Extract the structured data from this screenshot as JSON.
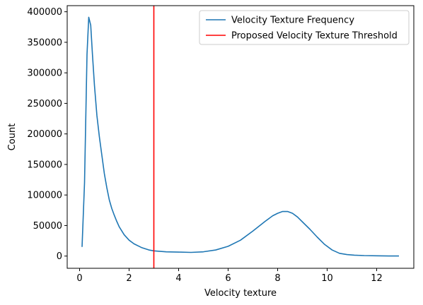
{
  "chart_data": {
    "type": "line",
    "title": "",
    "xlabel": "Velocity texture",
    "ylabel": "Count",
    "xlim": [
      -0.5,
      13.5
    ],
    "ylim": [
      -20000,
      410000
    ],
    "x_ticks": [
      0,
      2,
      4,
      6,
      8,
      10,
      12
    ],
    "y_ticks": [
      0,
      50000,
      100000,
      150000,
      200000,
      250000,
      300000,
      350000,
      400000
    ],
    "grid": false,
    "legend_position": "top-right",
    "series": [
      {
        "name": "Velocity Texture Frequency",
        "color": "#1f77b4",
        "x": [
          0.1,
          0.2,
          0.3,
          0.37,
          0.45,
          0.52,
          0.6,
          0.7,
          0.8,
          0.9,
          1.0,
          1.1,
          1.2,
          1.3,
          1.4,
          1.5,
          1.6,
          1.8,
          2.0,
          2.2,
          2.5,
          2.8,
          3.0,
          3.5,
          4.0,
          4.5,
          5.0,
          5.5,
          6.0,
          6.5,
          7.0,
          7.5,
          7.8,
          8.0,
          8.2,
          8.4,
          8.6,
          8.8,
          9.0,
          9.3,
          9.6,
          9.9,
          10.2,
          10.5,
          10.8,
          11.1,
          11.5,
          12.0,
          12.5,
          12.9
        ],
        "y": [
          15000,
          120000,
          330000,
          391000,
          378000,
          330000,
          280000,
          230000,
          195000,
          165000,
          135000,
          112000,
          92000,
          78000,
          67000,
          57000,
          48000,
          35000,
          26000,
          20000,
          14000,
          10000,
          8500,
          7000,
          6500,
          6000,
          7000,
          10000,
          16000,
          26000,
          41000,
          57000,
          66000,
          70000,
          73000,
          73000,
          70000,
          64000,
          56000,
          44000,
          31000,
          19000,
          10000,
          4500,
          2500,
          1500,
          800,
          400,
          200,
          150
        ]
      },
      {
        "name": "Proposed Velocity Texture Threshold",
        "color": "#ff0000",
        "vertical_x": 3.0
      }
    ]
  }
}
